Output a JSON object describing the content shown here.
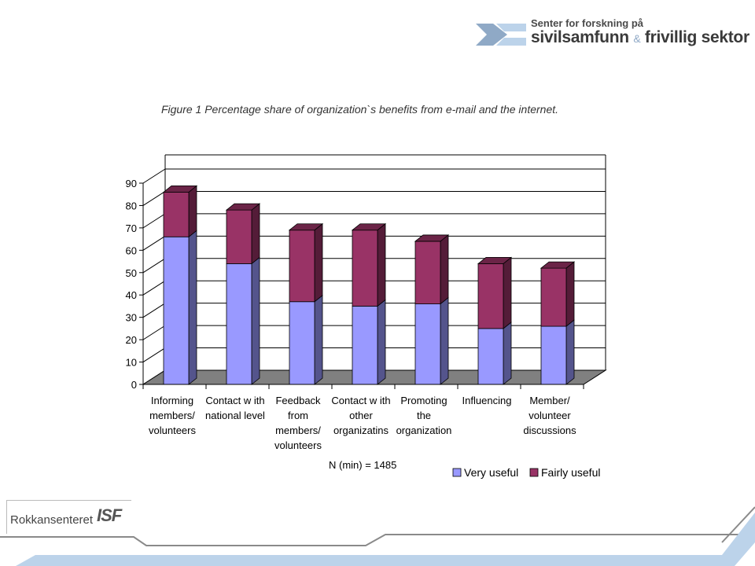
{
  "header": {
    "logo_line1": "Senter for forskning på",
    "logo_line2a": "sivilsamfunn",
    "logo_amp": "&",
    "logo_line2b": "frivillig sektor"
  },
  "caption": "Figure 1 Percentage share of organization`s benefits from e-mail and the internet.",
  "note": "N (min) = 1485",
  "footer": {
    "logo_name": "Rokkansenteret",
    "logo_mark": "ISF"
  },
  "colors": {
    "very_useful": "#9999ff",
    "fairly_useful": "#993366",
    "floor": "#808080",
    "accent": "#bcd3ea"
  },
  "chart_data": {
    "type": "bar",
    "stacked": true,
    "three_d": true,
    "title": "",
    "xlabel": "",
    "ylabel": "",
    "ylim": [
      0,
      90
    ],
    "yticks": [
      "0",
      "10",
      "20",
      "30",
      "40",
      "50",
      "60",
      "70",
      "80",
      "90"
    ],
    "grid": true,
    "legend": "bottom-right",
    "categories": [
      [
        "Informing",
        "members/",
        "volunteers"
      ],
      [
        "Contact w ith",
        "national level"
      ],
      [
        "Feedback",
        "from",
        "members/",
        "volunteers"
      ],
      [
        "Contact w ith",
        "other",
        "organizatins"
      ],
      [
        "Promoting",
        "the",
        "organization"
      ],
      [
        "Influencing"
      ],
      [
        "Member/",
        "volunteer",
        "discussions"
      ]
    ],
    "series": [
      {
        "name": "Very useful",
        "color": "#9999ff",
        "values": [
          66,
          54,
          37,
          35,
          36,
          25,
          26
        ]
      },
      {
        "name": "Fairly useful",
        "color": "#993366",
        "values": [
          20,
          24,
          32,
          34,
          28,
          29,
          26
        ]
      }
    ]
  }
}
